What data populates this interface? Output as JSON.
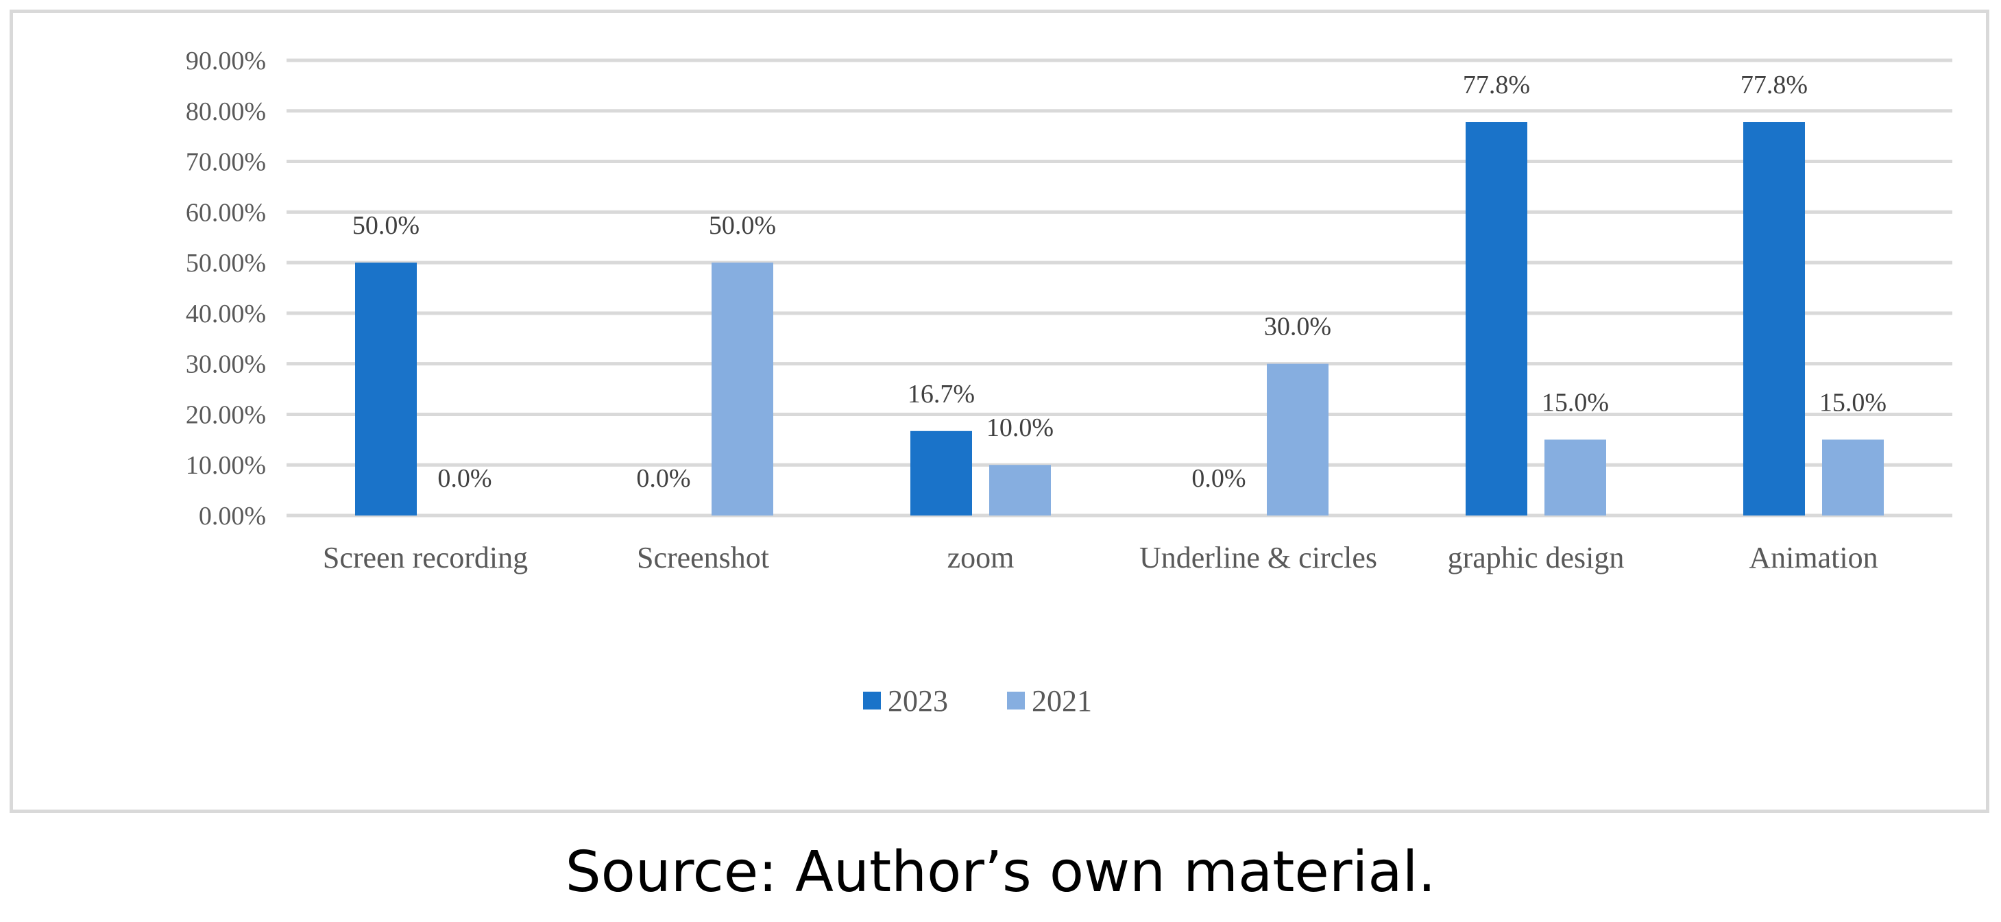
{
  "chart_data": {
    "type": "bar",
    "categories": [
      "Screen recording",
      "Screenshot",
      "zoom",
      "Underline & circles",
      "graphic design",
      "Animation"
    ],
    "series": [
      {
        "name": "2023",
        "color": "#1a73c9",
        "values": [
          50.0,
          0.0,
          16.7,
          0.0,
          77.8,
          77.8
        ],
        "labels": [
          "50.0%",
          "0.0%",
          "16.7%",
          "0.0%",
          "77.8%",
          "77.8%"
        ]
      },
      {
        "name": "2021",
        "color": "#86aee0",
        "values": [
          0.0,
          50.0,
          10.0,
          30.0,
          15.0,
          15.0
        ],
        "labels": [
          "0.0%",
          "50.0%",
          "10.0%",
          "30.0%",
          "15.0%",
          "15.0%"
        ]
      }
    ],
    "ylim": [
      0,
      90
    ],
    "yticks": [
      "0.00%",
      "10.00%",
      "20.00%",
      "30.00%",
      "40.00%",
      "50.00%",
      "60.00%",
      "70.00%",
      "80.00%",
      "90.00%"
    ],
    "grid": true,
    "legend_position": "bottom-center",
    "title": "",
    "xlabel": "",
    "ylabel": ""
  },
  "caption": "Source: Author’s own material."
}
